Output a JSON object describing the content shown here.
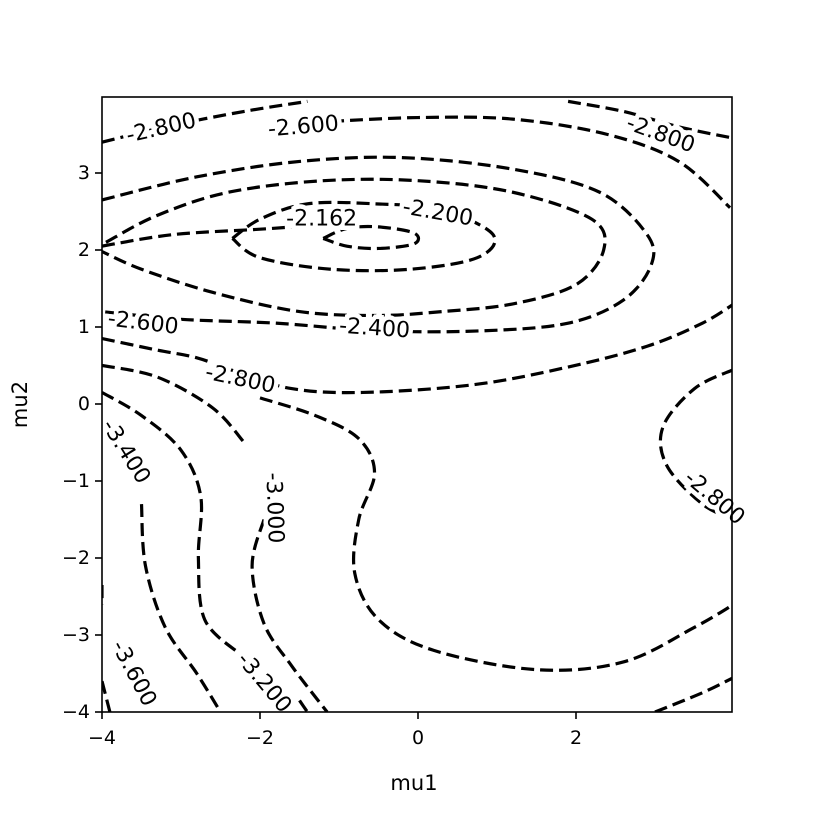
{
  "chart_data": {
    "type": "contour",
    "title": "",
    "xlabel": "mu1",
    "ylabel": "mu2",
    "xlim": [
      -4,
      4
    ],
    "ylim": [
      -4,
      4
    ],
    "x_ticks": [
      {
        "value": -4,
        "label": "−4"
      },
      {
        "value": -2,
        "label": "−2"
      },
      {
        "value": 0,
        "label": "0"
      },
      {
        "value": 2,
        "label": "2"
      }
    ],
    "y_ticks": [
      {
        "value": -4,
        "label": "−4"
      },
      {
        "value": -3,
        "label": "−3"
      },
      {
        "value": -2,
        "label": "−2"
      },
      {
        "value": -1,
        "label": "−1"
      },
      {
        "value": 0,
        "label": "0"
      },
      {
        "value": 1,
        "label": "1"
      },
      {
        "value": 2,
        "label": "2"
      },
      {
        "value": 3,
        "label": "3"
      }
    ],
    "line_style": "dashed",
    "line_color": "#000000",
    "grid": false,
    "levels": [
      -3.6,
      -3.4,
      -3.2,
      -3.0,
      -2.8,
      -2.6,
      -2.4,
      -2.2,
      -2.162
    ],
    "contour_labels": [
      {
        "text": "-2.800",
        "x": -3.25,
        "y": 3.58,
        "angle": -13
      },
      {
        "text": "-2.600",
        "x": -1.45,
        "y": 3.6,
        "angle": -5
      },
      {
        "text": "-2.800",
        "x": 3.07,
        "y": 3.5,
        "angle": 20
      },
      {
        "text": "-2.162",
        "x": -1.22,
        "y": 2.4,
        "angle": 0
      },
      {
        "text": "-2.200",
        "x": 0.25,
        "y": 2.48,
        "angle": 10
      },
      {
        "text": "-2.600",
        "x": -3.48,
        "y": 1.05,
        "angle": 7
      },
      {
        "text": "-2.400",
        "x": -0.55,
        "y": 0.98,
        "angle": 4
      },
      {
        "text": "-2.800",
        "x": -2.25,
        "y": 0.32,
        "angle": 12
      },
      {
        "text": "-3.400",
        "x": -3.7,
        "y": -0.62,
        "angle": 58
      },
      {
        "text": "-3.000",
        "x": -1.82,
        "y": -1.35,
        "angle": 88
      },
      {
        "text": "-2.800",
        "x": 3.75,
        "y": -1.22,
        "angle": 40
      },
      {
        "text": "-3.600",
        "x": -3.6,
        "y": -3.5,
        "angle": 62
      },
      {
        "text": "-3.200",
        "x": -1.95,
        "y": -3.62,
        "angle": 50
      }
    ],
    "contours": [
      {
        "level": -2.162,
        "points": [
          [
            -1.2,
            2.15
          ],
          [
            -0.9,
            2.28
          ],
          [
            -0.5,
            2.3
          ],
          [
            -0.05,
            2.22
          ],
          [
            -0.05,
            2.08
          ],
          [
            -0.5,
            2.02
          ],
          [
            -0.9,
            2.05
          ],
          [
            -1.2,
            2.15
          ]
        ]
      },
      {
        "level": -2.2,
        "points": [
          [
            -2.35,
            2.15
          ],
          [
            -2.0,
            2.4
          ],
          [
            -1.4,
            2.6
          ],
          [
            -0.55,
            2.6
          ],
          [
            0.3,
            2.52
          ],
          [
            0.95,
            2.2
          ],
          [
            0.75,
            1.9
          ],
          [
            -0.1,
            1.75
          ],
          [
            -1.1,
            1.75
          ],
          [
            -2.0,
            1.9
          ],
          [
            -2.35,
            2.15
          ]
        ]
      },
      {
        "level": -2.4,
        "points": [
          [
            -3.95,
            2.1
          ],
          [
            -3.3,
            2.45
          ],
          [
            -2.4,
            2.75
          ],
          [
            -1.2,
            2.9
          ],
          [
            0.0,
            2.9
          ],
          [
            1.2,
            2.75
          ],
          [
            2.2,
            2.4
          ],
          [
            2.35,
            2.0
          ],
          [
            2.0,
            1.55
          ],
          [
            1.2,
            1.3
          ],
          [
            0.3,
            1.2
          ],
          [
            -0.5,
            1.15
          ],
          [
            -1.5,
            1.2
          ],
          [
            -2.6,
            1.45
          ],
          [
            -3.5,
            1.75
          ],
          [
            -4.0,
            1.98
          ]
        ]
      },
      {
        "level": -2.6,
        "points": [
          [
            -4.0,
            2.65
          ],
          [
            -2.8,
            2.95
          ],
          [
            -1.5,
            3.15
          ],
          [
            -0.2,
            3.2
          ],
          [
            1.2,
            3.05
          ],
          [
            2.3,
            2.75
          ],
          [
            2.9,
            2.2
          ],
          [
            2.95,
            1.8
          ],
          [
            2.6,
            1.35
          ],
          [
            1.9,
            1.05
          ],
          [
            0.8,
            0.95
          ],
          [
            -0.5,
            0.95
          ],
          [
            -1.8,
            1.05
          ],
          [
            -3.0,
            1.1
          ],
          [
            -4.0,
            1.2
          ]
        ]
      },
      {
        "level": -2.6,
        "points": [
          [
            -1.1,
            3.67
          ],
          [
            0.0,
            3.72
          ],
          [
            1.2,
            3.7
          ],
          [
            2.4,
            3.5
          ],
          [
            3.3,
            3.15
          ],
          [
            3.95,
            2.55
          ]
        ]
      },
      {
        "level": -2.8,
        "points": [
          [
            -4.0,
            3.4
          ],
          [
            -3.2,
            3.6
          ],
          [
            -2.2,
            3.8
          ],
          [
            -1.4,
            3.93
          ]
        ]
      },
      {
        "level": -2.8,
        "points": [
          [
            1.9,
            3.93
          ],
          [
            2.6,
            3.8
          ],
          [
            3.3,
            3.6
          ],
          [
            4.0,
            3.45
          ]
        ]
      },
      {
        "level": -2.8,
        "points": [
          [
            -4.0,
            2.05
          ],
          [
            -3.1,
            2.2
          ],
          [
            -2.0,
            2.27
          ],
          [
            -1.3,
            2.32
          ]
        ]
      },
      {
        "level": -2.8,
        "points": [
          [
            -4.0,
            0.85
          ],
          [
            -3.3,
            0.7
          ],
          [
            -2.8,
            0.6
          ],
          [
            -2.3,
            0.42
          ],
          [
            -1.6,
            0.2
          ],
          [
            -0.7,
            0.15
          ],
          [
            0.7,
            0.25
          ],
          [
            1.9,
            0.48
          ],
          [
            2.9,
            0.75
          ],
          [
            3.6,
            1.05
          ],
          [
            4.0,
            1.3
          ]
        ]
      },
      {
        "level": -2.8,
        "points": [
          [
            -2.0,
            0.08
          ],
          [
            -1.3,
            -0.15
          ],
          [
            -0.75,
            -0.45
          ],
          [
            -0.55,
            -0.9
          ],
          [
            -0.75,
            -1.5
          ],
          [
            -0.8,
            -2.2
          ],
          [
            -0.5,
            -2.8
          ],
          [
            0.2,
            -3.2
          ],
          [
            1.5,
            -3.45
          ],
          [
            2.6,
            -3.35
          ],
          [
            3.5,
            -2.9
          ],
          [
            4.0,
            -2.6
          ]
        ]
      },
      {
        "level": -2.8,
        "points": [
          [
            4.0,
            0.45
          ],
          [
            3.5,
            0.2
          ],
          [
            3.1,
            -0.3
          ],
          [
            3.15,
            -0.8
          ],
          [
            3.6,
            -1.3
          ],
          [
            4.0,
            -1.5
          ]
        ]
      },
      {
        "level": -2.8,
        "points": [
          [
            3.0,
            -4.0
          ],
          [
            3.6,
            -3.75
          ],
          [
            4.0,
            -3.55
          ]
        ]
      },
      {
        "level": -3.0,
        "points": [
          [
            -4.0,
            0.5
          ],
          [
            -3.3,
            0.35
          ],
          [
            -2.6,
            -0.05
          ],
          [
            -2.2,
            -0.5
          ]
        ]
      },
      {
        "level": -3.0,
        "points": [
          [
            -1.95,
            -1.5
          ],
          [
            -2.1,
            -2.1
          ],
          [
            -1.95,
            -2.85
          ],
          [
            -1.6,
            -3.4
          ],
          [
            -1.15,
            -4.0
          ]
        ]
      },
      {
        "level": -3.2,
        "points": [
          [
            -4.0,
            0.15
          ],
          [
            -3.5,
            -0.15
          ],
          [
            -3.0,
            -0.6
          ],
          [
            -2.75,
            -1.2
          ],
          [
            -2.78,
            -2.0
          ],
          [
            -2.7,
            -2.8
          ],
          [
            -2.25,
            -3.25
          ]
        ]
      },
      {
        "level": -3.2,
        "points": [
          [
            -1.5,
            -3.85
          ],
          [
            -1.4,
            -4.0
          ]
        ]
      },
      {
        "level": -3.4,
        "points": [
          [
            -3.5,
            -1.3
          ],
          [
            -3.45,
            -2.1
          ],
          [
            -3.2,
            -2.9
          ],
          [
            -2.8,
            -3.5
          ],
          [
            -2.5,
            -4.0
          ]
        ]
      },
      {
        "level": -3.6,
        "points": [
          [
            -4.0,
            -2.35
          ],
          [
            -4.0,
            -2.6
          ]
        ]
      },
      {
        "level": -3.6,
        "points": [
          [
            -4.0,
            -3.6
          ],
          [
            -3.9,
            -4.0
          ]
        ]
      }
    ]
  }
}
